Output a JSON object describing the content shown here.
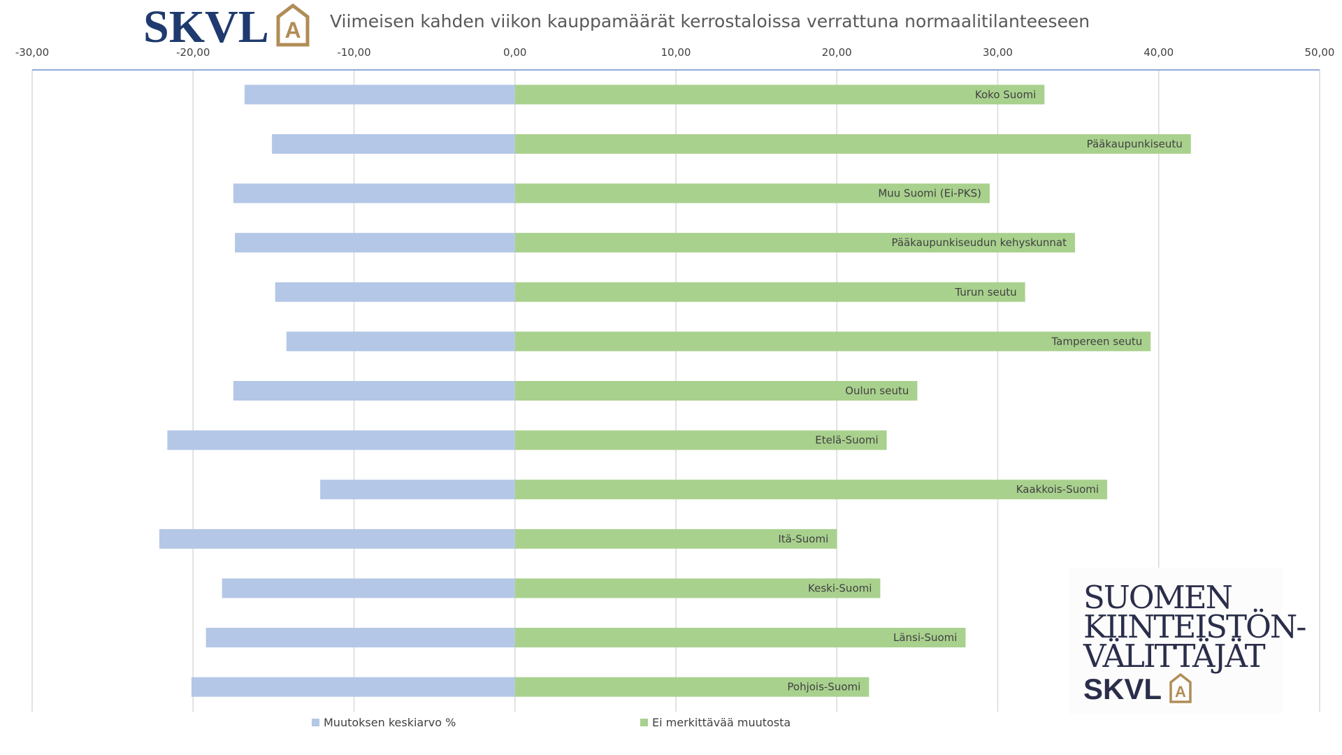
{
  "header": {
    "logo_text": "SKVL",
    "logo_mark": "A",
    "title": "Viimeisen kahden viikon kauppamäärät kerrostaloissa verrattuna normaalitilanteeseen"
  },
  "brand": {
    "line1": "SUOMEN",
    "line2": "KIINTEISTÖN-",
    "line3": "VÄLITTÄJÄT",
    "logo_text": "SKVL",
    "logo_mark": "A"
  },
  "colors": {
    "series_negative": "#b4c7e7",
    "series_positive": "#a9d18e",
    "axis_line": "#8faadc",
    "grid": "#d9d9d9",
    "text": "#404040",
    "brand_navy": "#1f3a6e",
    "brand_gold": "#b08d57"
  },
  "chart_data": {
    "type": "bar",
    "orientation": "horizontal",
    "stacked": true,
    "title": "Viimeisen kahden viikon kauppamäärät kerrostaloissa verrattuna normaalitilanteeseen",
    "xlim": [
      -30,
      50
    ],
    "xticks": [
      "-30,00",
      "-20,00",
      "-10,00",
      "0,00",
      "10,00",
      "20,00",
      "30,00",
      "40,00",
      "50,00"
    ],
    "tick_values": [
      -30,
      -20,
      -10,
      0,
      10,
      20,
      30,
      40,
      50
    ],
    "x_axis_position": "top",
    "grid": true,
    "legend_position": "bottom",
    "categories": [
      "Koko Suomi",
      "Pääkaupunkiseutu",
      "Muu Suomi (Ei-PKS)",
      "Pääkaupunkiseudun kehyskunnat",
      "Turun seutu",
      "Tampereen seutu",
      "Oulun seutu",
      "Etelä-Suomi",
      "Kaakkois-Suomi",
      "Itä-Suomi",
      "Keski-Suomi",
      "Länsi-Suomi",
      "Pohjois-Suomi"
    ],
    "series": [
      {
        "name": "Muutoksen keskiarvo %",
        "values": [
          -16.8,
          -15.1,
          -17.5,
          -17.4,
          -14.9,
          -14.2,
          -17.5,
          -21.6,
          -12.1,
          -22.1,
          -18.2,
          -19.2,
          -20.1
        ]
      },
      {
        "name": "Ei merkittävää muutosta",
        "values": [
          32.9,
          42.0,
          29.5,
          34.8,
          31.7,
          39.5,
          25.0,
          23.1,
          36.8,
          20.0,
          22.7,
          28.0,
          22.0
        ]
      }
    ]
  }
}
